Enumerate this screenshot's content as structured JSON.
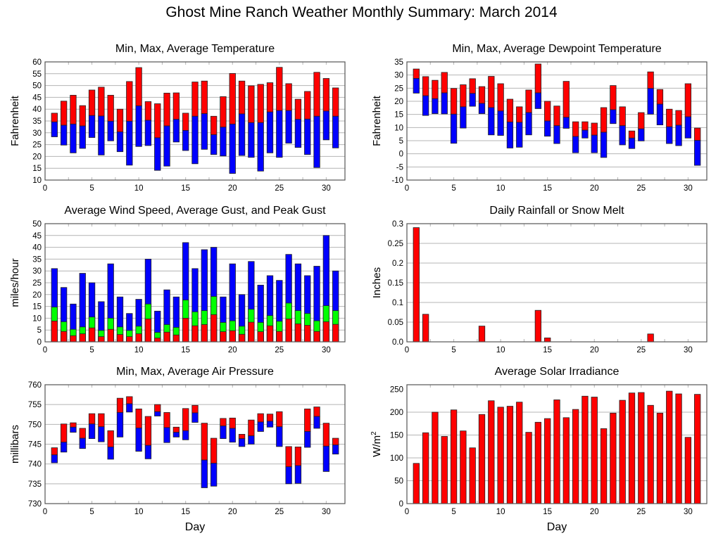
{
  "title": "Ghost Mine Ranch Weather Monthly Summary: March 2014",
  "colors": {
    "max": "#ff0000",
    "avg_low": "#0000ff",
    "gust": "#00ff00",
    "grid": "#b4b4b4",
    "frame": "#555555"
  },
  "chart_data": [
    {
      "id": "temperature",
      "type": "bar",
      "style": "floating-range",
      "title": "Min, Max, Average Temperature",
      "xlabel": "",
      "ylabel": "Fahrenheit",
      "xlim": [
        0,
        32
      ],
      "xticks": [
        0,
        5,
        10,
        15,
        20,
        25,
        30
      ],
      "ylim": [
        10,
        60
      ],
      "yticks": [
        10,
        15,
        20,
        25,
        30,
        35,
        40,
        45,
        50,
        55,
        60
      ],
      "ytick_labels": [
        "10",
        "15",
        "20",
        "25",
        "30",
        "35",
        "40",
        "45",
        "50",
        "55",
        "60"
      ],
      "grid": true,
      "x": [
        1,
        2,
        3,
        4,
        5,
        6,
        7,
        8,
        9,
        10,
        11,
        12,
        13,
        14,
        15,
        16,
        17,
        18,
        19,
        20,
        21,
        22,
        23,
        24,
        25,
        26,
        27,
        28,
        29,
        30,
        31
      ],
      "series": [
        {
          "name": "Max",
          "values": [
            38.3,
            43.4,
            45.9,
            41.5,
            48.1,
            49.3,
            45.9,
            40.0,
            51.7,
            57.6,
            43.2,
            42.3,
            46.8,
            46.9,
            38.3,
            51.5,
            51.9,
            37.0,
            45.3,
            55.1,
            51.9,
            49.9,
            50.5,
            51.2,
            57.7,
            50.8,
            44.2,
            47.5,
            55.6,
            53.0,
            49.0
          ]
        },
        {
          "name": "Average",
          "values": [
            34.6,
            33.2,
            33.7,
            32.9,
            37.3,
            37.1,
            34.9,
            30.4,
            34.9,
            41.4,
            35.3,
            27.9,
            32.9,
            35.7,
            31.0,
            37.0,
            38.1,
            29.2,
            32.4,
            33.7,
            38.0,
            34.3,
            34.3,
            38.8,
            39.4,
            39.4,
            35.7,
            35.8,
            37.0,
            39.2,
            37.0
          ]
        },
        {
          "name": "Min",
          "values": [
            28.3,
            24.8,
            21.5,
            23.4,
            28.0,
            20.6,
            26.6,
            22.0,
            16.3,
            24.2,
            24.6,
            14.1,
            15.9,
            26.1,
            22.5,
            16.9,
            23.0,
            20.8,
            20.2,
            12.8,
            20.4,
            19.6,
            13.8,
            21.5,
            19.6,
            25.6,
            23.8,
            20.8,
            15.3,
            27.0,
            23.6
          ]
        }
      ]
    },
    {
      "id": "dewpoint",
      "type": "bar",
      "style": "floating-range",
      "title": "Min, Max, Average Dewpoint Temperature",
      "xlabel": "",
      "ylabel": "Fahrenheit",
      "xlim": [
        0,
        32
      ],
      "xticks": [
        0,
        5,
        10,
        15,
        20,
        25,
        30
      ],
      "ylim": [
        -10,
        35
      ],
      "yticks": [
        -10,
        -5,
        0,
        5,
        10,
        15,
        20,
        25,
        30,
        35
      ],
      "ytick_labels": [
        "-10",
        "-5",
        "0",
        "5",
        "10",
        "15",
        "20",
        "25",
        "30",
        "35"
      ],
      "grid": true,
      "x": [
        1,
        2,
        3,
        4,
        5,
        6,
        7,
        8,
        9,
        10,
        11,
        12,
        13,
        14,
        15,
        16,
        17,
        18,
        19,
        20,
        21,
        22,
        23,
        24,
        25,
        26,
        27,
        28,
        29,
        30,
        31
      ],
      "series": [
        {
          "name": "Max",
          "values": [
            32.3,
            29.4,
            28.0,
            31.0,
            24.9,
            26.3,
            28.6,
            25.6,
            29.5,
            26.7,
            20.8,
            17.9,
            24.3,
            34.2,
            20.0,
            18.2,
            27.6,
            12.2,
            12.2,
            11.7,
            17.6,
            26.0,
            17.9,
            8.7,
            15.7,
            31.2,
            24.5,
            17.0,
            16.5,
            26.7,
            9.8
          ]
        },
        {
          "name": "Average",
          "values": [
            28.7,
            22.1,
            21.0,
            23.2,
            15.1,
            17.9,
            23.0,
            19.2,
            17.6,
            16.3,
            12.1,
            12.0,
            15.7,
            23.2,
            12.5,
            10.7,
            13.9,
            6.6,
            9.0,
            7.1,
            8.2,
            16.8,
            10.7,
            6.0,
            9.5,
            24.9,
            18.9,
            10.3,
            10.9,
            14.1,
            5.1
          ]
        },
        {
          "name": "Min",
          "values": [
            23.1,
            14.6,
            15.3,
            15.2,
            4.0,
            9.8,
            18.1,
            15.3,
            7.2,
            7.0,
            2.2,
            2.5,
            7.2,
            17.2,
            6.7,
            3.9,
            9.7,
            0.4,
            6.0,
            0.4,
            -1.4,
            11.5,
            3.4,
            2.0,
            4.9,
            15.1,
            11.0,
            3.9,
            3.1,
            6.0,
            -4.4
          ]
        }
      ]
    },
    {
      "id": "wind",
      "type": "bar",
      "style": "overlay",
      "title": "Average Wind Speed, Average Gust, and Peak Gust",
      "xlabel": "",
      "ylabel": "miles/hour",
      "xlim": [
        0,
        32
      ],
      "xticks": [
        0,
        5,
        10,
        15,
        20,
        25,
        30
      ],
      "ylim": [
        0,
        50
      ],
      "yticks": [
        0,
        5,
        10,
        15,
        20,
        25,
        30,
        35,
        40,
        45,
        50
      ],
      "ytick_labels": [
        "0",
        "5",
        "10",
        "15",
        "20",
        "25",
        "30",
        "35",
        "40",
        "45",
        "50"
      ],
      "grid": true,
      "x": [
        1,
        2,
        3,
        4,
        5,
        6,
        7,
        8,
        9,
        10,
        11,
        12,
        13,
        14,
        15,
        16,
        17,
        18,
        19,
        20,
        21,
        22,
        23,
        24,
        25,
        26,
        27,
        28,
        29,
        30,
        31
      ],
      "series": [
        {
          "name": "Peak Gust",
          "values": [
            31,
            23,
            16,
            29,
            25,
            17,
            33,
            19,
            12,
            18,
            35,
            13,
            22,
            19,
            42,
            31,
            39,
            40,
            19,
            33,
            20,
            34,
            24,
            28,
            26,
            37,
            33,
            28,
            32,
            45,
            30
          ]
        },
        {
          "name": "Average Gust",
          "values": [
            14.7,
            8.5,
            5.3,
            6.3,
            10.5,
            4.8,
            10.0,
            6.3,
            4.8,
            6.6,
            16.0,
            4.0,
            7.3,
            6.1,
            17.7,
            12.7,
            13.2,
            19.2,
            8.2,
            8.9,
            6.6,
            13.8,
            8.2,
            11.1,
            8.7,
            16.4,
            13.2,
            12.0,
            8.9,
            15.3,
            13.2
          ]
        },
        {
          "name": "Average Wind Speed",
          "values": [
            8.8,
            4.4,
            2.6,
            3.4,
            5.9,
            2.2,
            5.3,
            3.1,
            2.2,
            3.4,
            9.7,
            1.6,
            4.1,
            2.9,
            10.0,
            6.8,
            7.3,
            11.5,
            4.3,
            4.7,
            3.2,
            8.3,
            4.3,
            6.8,
            4.4,
            9.7,
            7.6,
            7.0,
            4.4,
            8.5,
            7.4
          ]
        }
      ]
    },
    {
      "id": "rain",
      "type": "bar",
      "style": "simple",
      "title": "Daily Rainfall or Snow Melt",
      "xlabel": "",
      "ylabel": "Inches",
      "xlim": [
        0,
        32
      ],
      "xticks": [
        0,
        5,
        10,
        15,
        20,
        25,
        30
      ],
      "ylim": [
        0,
        0.3
      ],
      "yticks": [
        0,
        0.05,
        0.1,
        0.15,
        0.2,
        0.25,
        0.3
      ],
      "ytick_labels": [
        "0.0",
        "0.05",
        "0.1",
        "0.15",
        "0.2",
        "0.25",
        "0.3"
      ],
      "grid": true,
      "x": [
        1,
        2,
        3,
        4,
        5,
        6,
        7,
        8,
        9,
        10,
        11,
        12,
        13,
        14,
        15,
        16,
        17,
        18,
        19,
        20,
        21,
        22,
        23,
        24,
        25,
        26,
        27,
        28,
        29,
        30,
        31
      ],
      "series": [
        {
          "name": "Rainfall",
          "values": [
            0.29,
            0.07,
            0,
            0,
            0,
            0,
            0,
            0.04,
            0,
            0,
            0,
            0,
            0,
            0.08,
            0.01,
            0,
            0,
            0,
            0,
            0,
            0,
            0,
            0,
            0,
            0,
            0.02,
            0,
            0,
            0,
            0,
            0
          ]
        }
      ]
    },
    {
      "id": "pressure",
      "type": "bar",
      "style": "floating-range",
      "title": "Min, Max, Average Air Pressure",
      "xlabel": "Day",
      "ylabel": "millibars",
      "xlim": [
        0,
        32
      ],
      "xticks": [
        0,
        5,
        10,
        15,
        20,
        25,
        30
      ],
      "ylim": [
        730,
        760
      ],
      "yticks": [
        730,
        735,
        740,
        745,
        750,
        755,
        760
      ],
      "ytick_labels": [
        "730",
        "735",
        "740",
        "745",
        "750",
        "755",
        "760"
      ],
      "grid": true,
      "x": [
        1,
        2,
        3,
        4,
        5,
        6,
        7,
        8,
        9,
        10,
        11,
        12,
        13,
        14,
        15,
        16,
        17,
        18,
        19,
        20,
        21,
        22,
        23,
        24,
        25,
        26,
        27,
        28,
        29,
        30,
        31
      ],
      "series": [
        {
          "name": "Max",
          "values": [
            744.1,
            750.1,
            750.4,
            749.0,
            752.7,
            752.7,
            748.4,
            756.6,
            757.0,
            753.9,
            752.0,
            755.0,
            753.0,
            749.3,
            754.0,
            754.8,
            750.3,
            746.5,
            751.5,
            751.6,
            747.5,
            751.1,
            752.7,
            752.6,
            753.2,
            744.4,
            744.3,
            753.9,
            754.4,
            750.3,
            746.5
          ]
        },
        {
          "name": "Average",
          "values": [
            742.3,
            745.5,
            749.3,
            746.5,
            750.1,
            749.4,
            744.3,
            753.0,
            755.2,
            749.1,
            744.7,
            753.2,
            749.2,
            748.0,
            748.4,
            752.9,
            741.0,
            740.2,
            749.6,
            749.0,
            746.4,
            747.1,
            750.6,
            750.8,
            749.4,
            739.3,
            739.6,
            748.2,
            752.0,
            744.5,
            744.8
          ]
        },
        {
          "name": "Min",
          "values": [
            740.3,
            743.0,
            748.0,
            743.9,
            746.4,
            745.6,
            741.2,
            746.8,
            753.1,
            743.2,
            741.3,
            752.1,
            745.4,
            746.8,
            746.1,
            750.5,
            734.0,
            734.4,
            746.4,
            745.5,
            744.4,
            745.0,
            748.2,
            749.3,
            744.4,
            735.0,
            735.1,
            744.2,
            749.0,
            738.1,
            742.5
          ]
        }
      ]
    },
    {
      "id": "solar",
      "type": "bar",
      "style": "simple",
      "title": "Average Solar Irradiance",
      "xlabel": "Day",
      "ylabel": "W/m",
      "ylabel_sup": "2",
      "xlim": [
        0,
        32
      ],
      "xticks": [
        0,
        5,
        10,
        15,
        20,
        25,
        30
      ],
      "ylim": [
        0,
        260
      ],
      "yticks": [
        0,
        50,
        100,
        150,
        200,
        250
      ],
      "ytick_labels": [
        "0",
        "50",
        "100",
        "150",
        "200",
        "250"
      ],
      "grid": true,
      "x": [
        1,
        2,
        3,
        4,
        5,
        6,
        7,
        8,
        9,
        10,
        11,
        12,
        13,
        14,
        15,
        16,
        17,
        18,
        19,
        20,
        21,
        22,
        23,
        24,
        25,
        26,
        27,
        28,
        29,
        30,
        31
      ],
      "series": [
        {
          "name": "Solar Irradiance",
          "values": [
            88,
            155,
            200,
            147,
            205,
            159,
            122,
            195,
            225,
            211,
            213,
            222,
            156,
            178,
            186,
            227,
            188,
            206,
            235,
            233,
            164,
            198,
            226,
            242,
            243,
            215,
            198,
            246,
            240,
            145,
            239
          ]
        }
      ]
    }
  ]
}
